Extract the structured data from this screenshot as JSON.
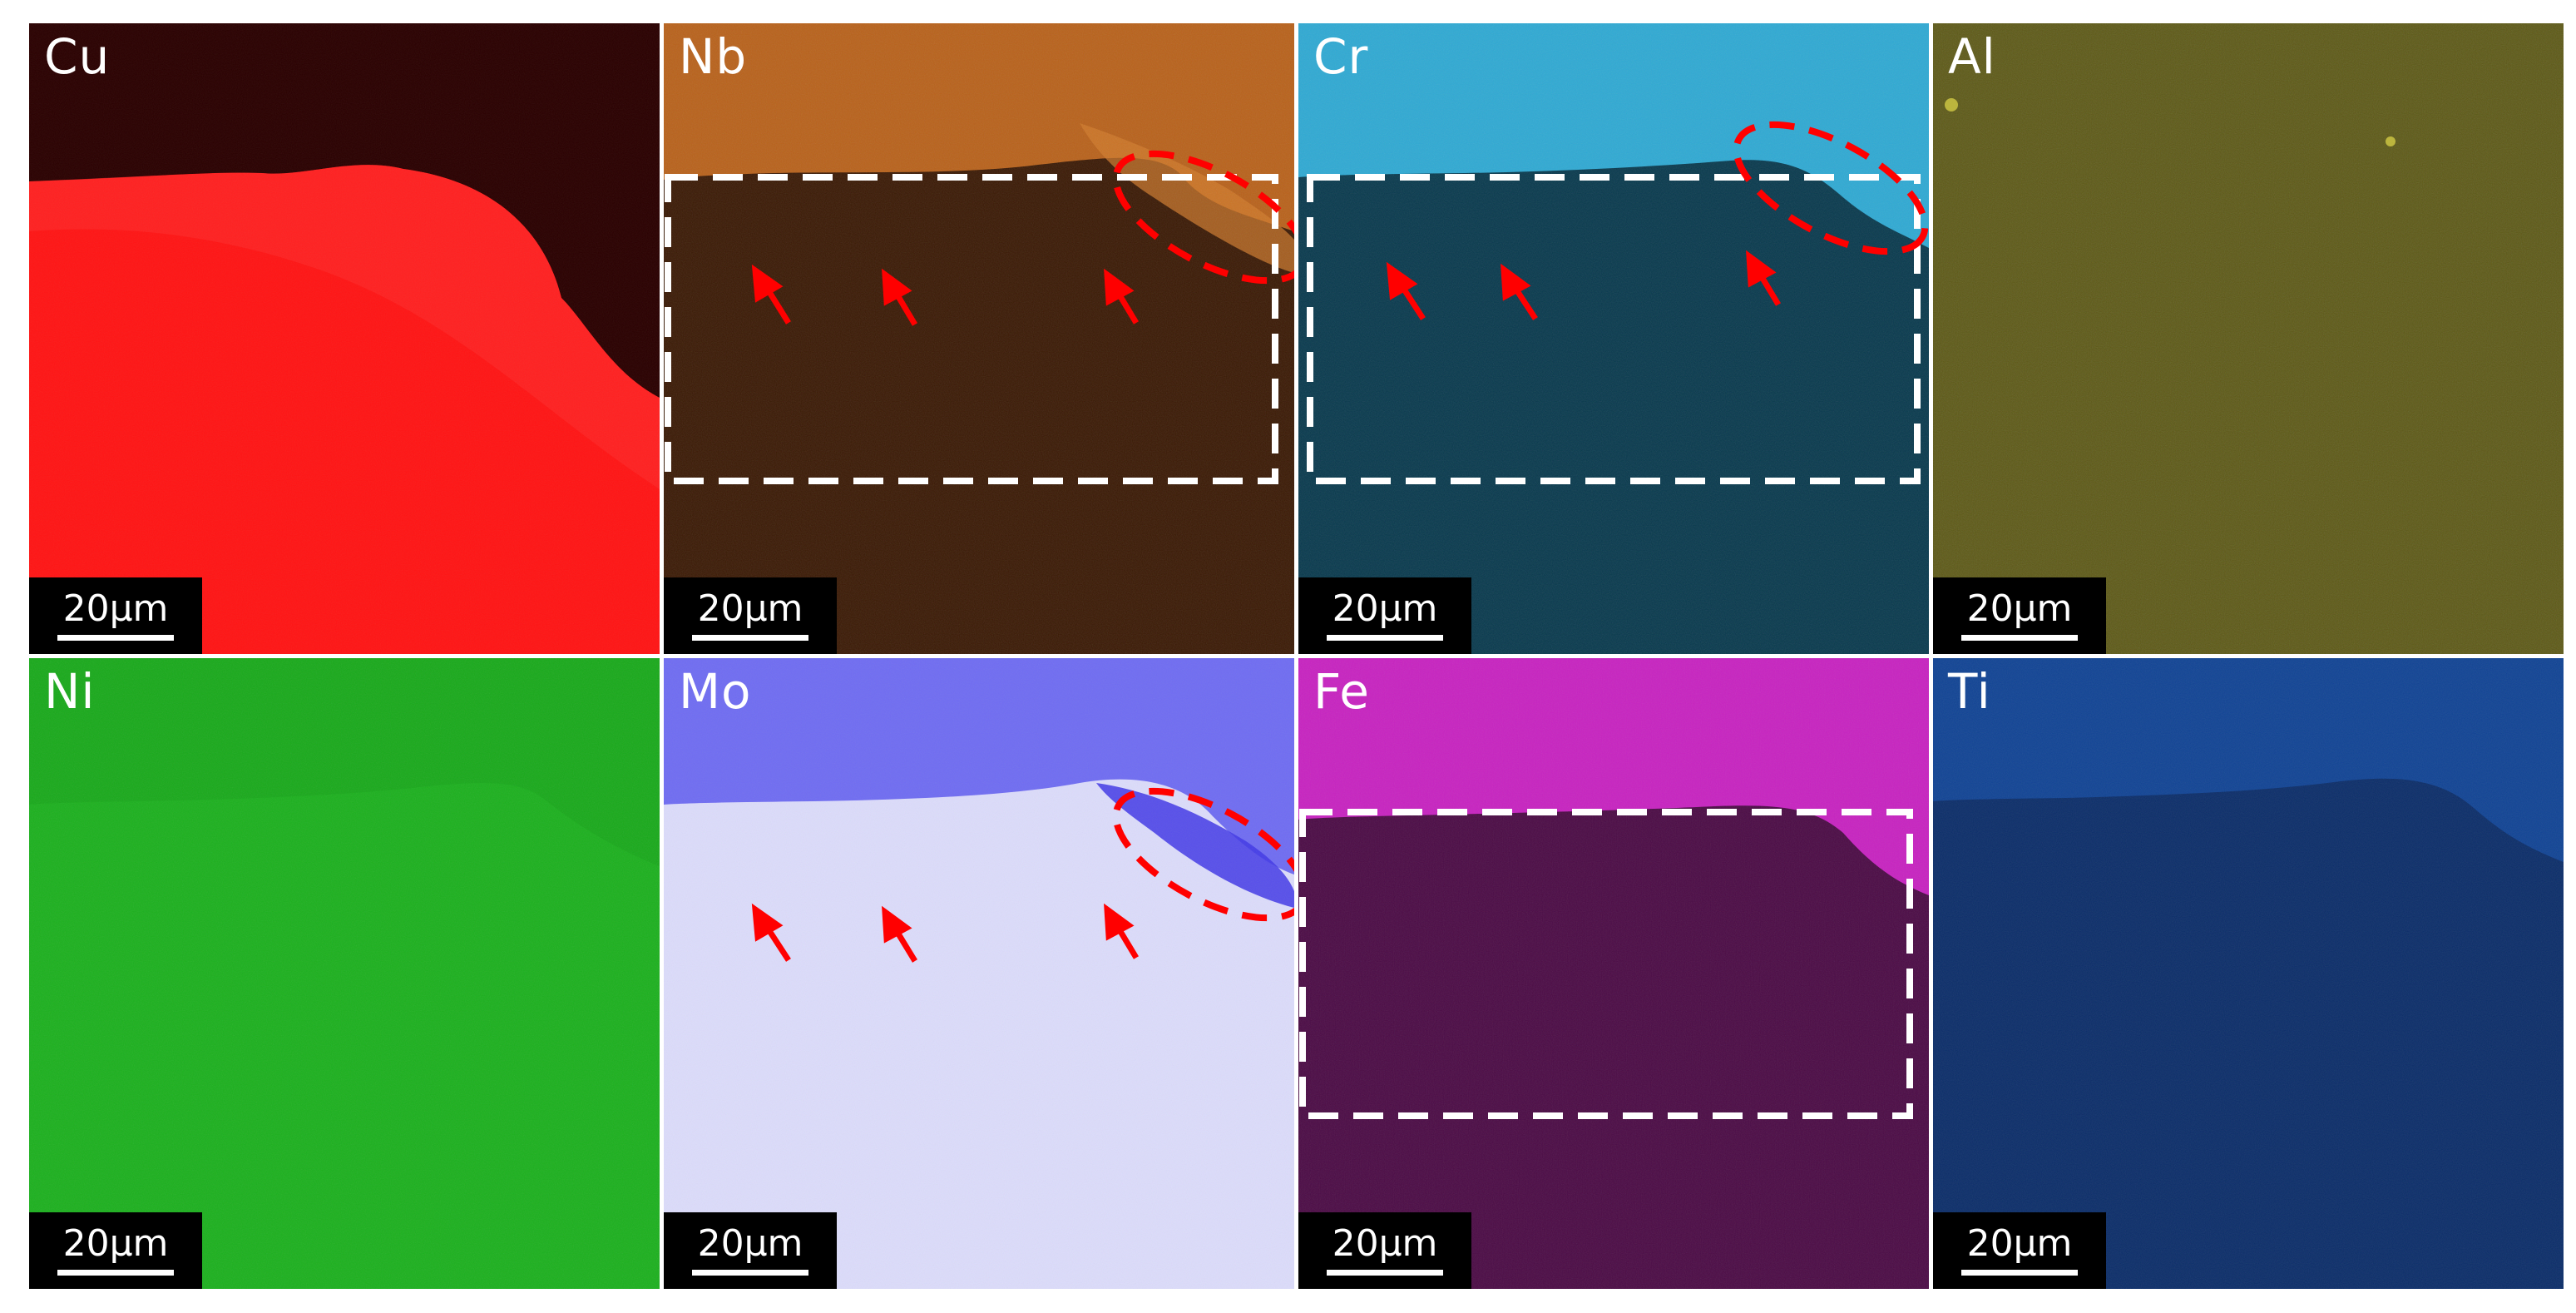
{
  "figure": {
    "scale_bar_text": "20µm",
    "panels": [
      {
        "label": "Cu",
        "base_color": "#ff1515",
        "upper_color": "#2a0000",
        "noise": "#ff3a3a",
        "noise_opacity": 0.12
      },
      {
        "label": "Nb",
        "base_color": "#3a1904",
        "upper_color": "#b8611a",
        "noise": "#d98b3a",
        "noise_opacity": 0.18
      },
      {
        "label": "Cr",
        "base_color": "#08394d",
        "upper_color": "#2ea9d3",
        "noise": "#59c8ef",
        "noise_opacity": 0.16
      },
      {
        "label": "Al",
        "base_color": "#5c5815",
        "upper_color": "#5f5b15",
        "noise": "#a8a12c",
        "noise_opacity": 0.22
      },
      {
        "label": "Ni",
        "base_color": "#1bb01d",
        "upper_color": "#15a717",
        "noise": "#56d65a",
        "noise_opacity": 0.18
      },
      {
        "label": "Mo",
        "base_color": "#dcdcfb",
        "upper_color": "#6d6af0",
        "noise": "#9b9af5",
        "noise_opacity": 0.18
      },
      {
        "label": "Fe",
        "base_color": "#4b0b45",
        "upper_color": "#c722c0",
        "noise": "#e35be0",
        "noise_opacity": 0.16
      },
      {
        "label": "Ti",
        "base_color": "#0b2d69",
        "upper_color": "#104394",
        "noise": "#3c73c8",
        "noise_opacity": 0.2
      }
    ]
  }
}
